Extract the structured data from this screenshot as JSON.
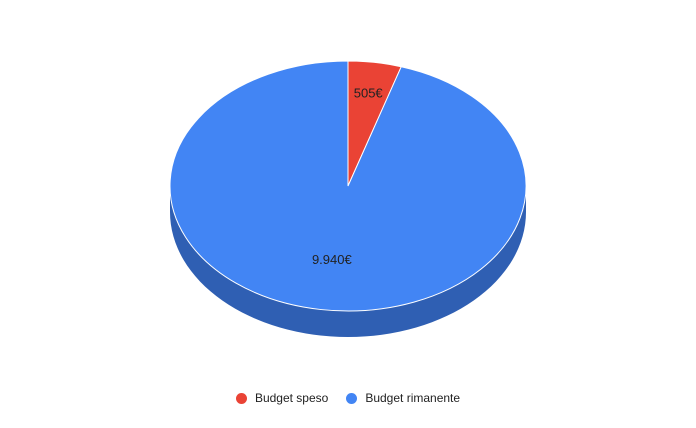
{
  "chart_data": {
    "type": "pie",
    "style": "3d",
    "categories": [
      "Budget speso",
      "Budget rimanente"
    ],
    "values": [
      505,
      9940
    ],
    "value_labels": [
      "505€",
      "9.940€"
    ],
    "colors": [
      "#ea4335",
      "#4285f4"
    ],
    "side_colors": [
      "#b33428",
      "#2f5fb3"
    ],
    "legend_position": "bottom",
    "title": ""
  }
}
